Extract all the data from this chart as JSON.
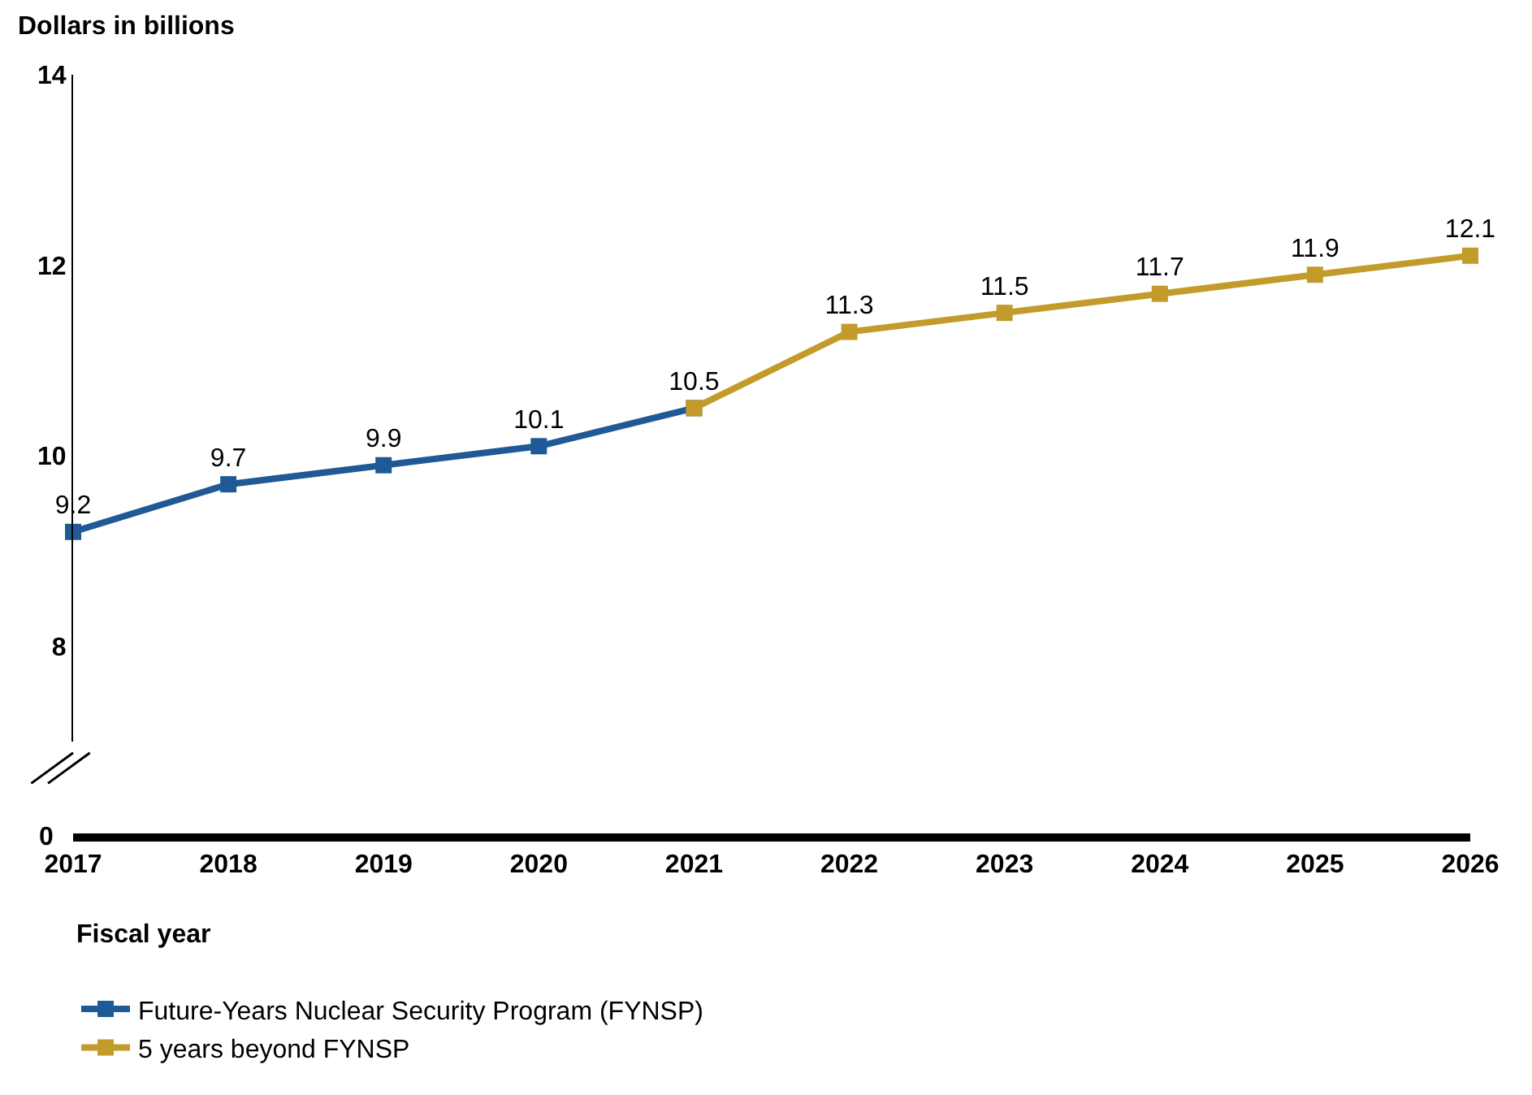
{
  "chart_data": {
    "type": "line",
    "ylabel": "Dollars in billions",
    "xlabel": "Fiscal year",
    "x": [
      2017,
      2018,
      2019,
      2020,
      2021,
      2022,
      2023,
      2024,
      2025,
      2026
    ],
    "series": [
      {
        "name": "Future-Years Nuclear Security Program (FYNSP)",
        "color": "#1f5a96",
        "values": [
          9.2,
          9.7,
          9.9,
          10.1,
          10.5,
          null,
          null,
          null,
          null,
          null
        ],
        "value_labels": [
          "9.2",
          "9.7",
          "9.9",
          "10.1",
          "10.5",
          null,
          null,
          null,
          null,
          null
        ]
      },
      {
        "name": "5 years beyond FYNSP",
        "color": "#c29b2a",
        "values": [
          null,
          null,
          null,
          null,
          10.5,
          11.3,
          11.5,
          11.7,
          11.9,
          12.1
        ],
        "value_labels": [
          null,
          null,
          null,
          null,
          null,
          "11.3",
          "11.5",
          "11.7",
          "11.9",
          "12.1"
        ]
      }
    ],
    "xlim": [
      2017,
      2026
    ],
    "xticks": [
      2017,
      2018,
      2019,
      2020,
      2021,
      2022,
      2023,
      2024,
      2025,
      2026
    ],
    "ylim": [
      7,
      14
    ],
    "yticks": [
      8,
      10,
      12,
      14
    ],
    "annotations": [
      "0"
    ],
    "legend": "bottom left",
    "marker": "square",
    "line_style": "solid"
  }
}
